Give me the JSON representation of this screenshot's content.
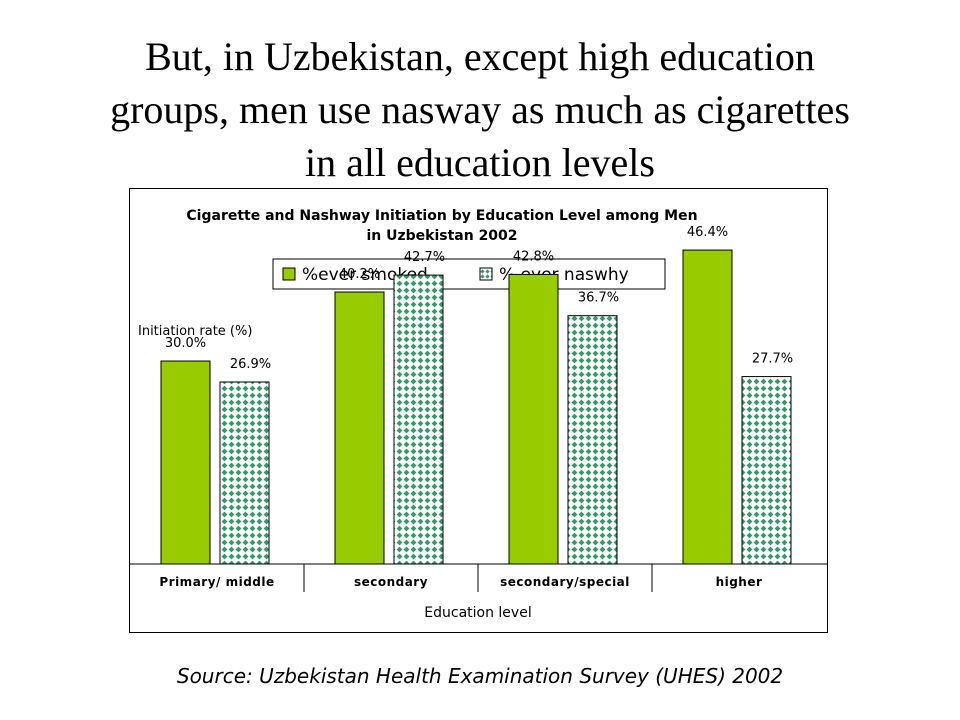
{
  "slide": {
    "title_line1": "But, in Uzbekistan, except high education",
    "title_line2": "groups, men use nasway as much as cigarettes",
    "title_line3": "in all education levels",
    "source": "Source: Uzbekistan Health Examination Survey (UHES) 2002"
  },
  "chart_data": {
    "type": "bar",
    "title_line1": "Cigarette and Nashway Initiation by Education Level among Men",
    "title_line2": "in Uzbekistan 2002",
    "xlabel": "Education level",
    "ylabel": "Initiation rate (%)",
    "categories": [
      "Primary/ middle",
      "secondary",
      "secondary/special",
      "higher"
    ],
    "series": [
      {
        "name": "%ever smoked",
        "values": [
          30.0,
          40.2,
          42.8,
          46.4
        ],
        "labels": [
          "30.0%",
          "40.2%",
          "42.8%",
          "46.4%"
        ],
        "color": "#99cc00",
        "pattern": "solid"
      },
      {
        "name": "% ever naswhy",
        "values": [
          26.9,
          42.7,
          36.7,
          27.7
        ],
        "labels": [
          "26.9%",
          "42.7%",
          "36.7%",
          "27.7%"
        ],
        "color": "#339966",
        "pattern": "diamond-checker"
      }
    ],
    "ylim": [
      0,
      60
    ],
    "grid": false,
    "legend_position": "top"
  }
}
